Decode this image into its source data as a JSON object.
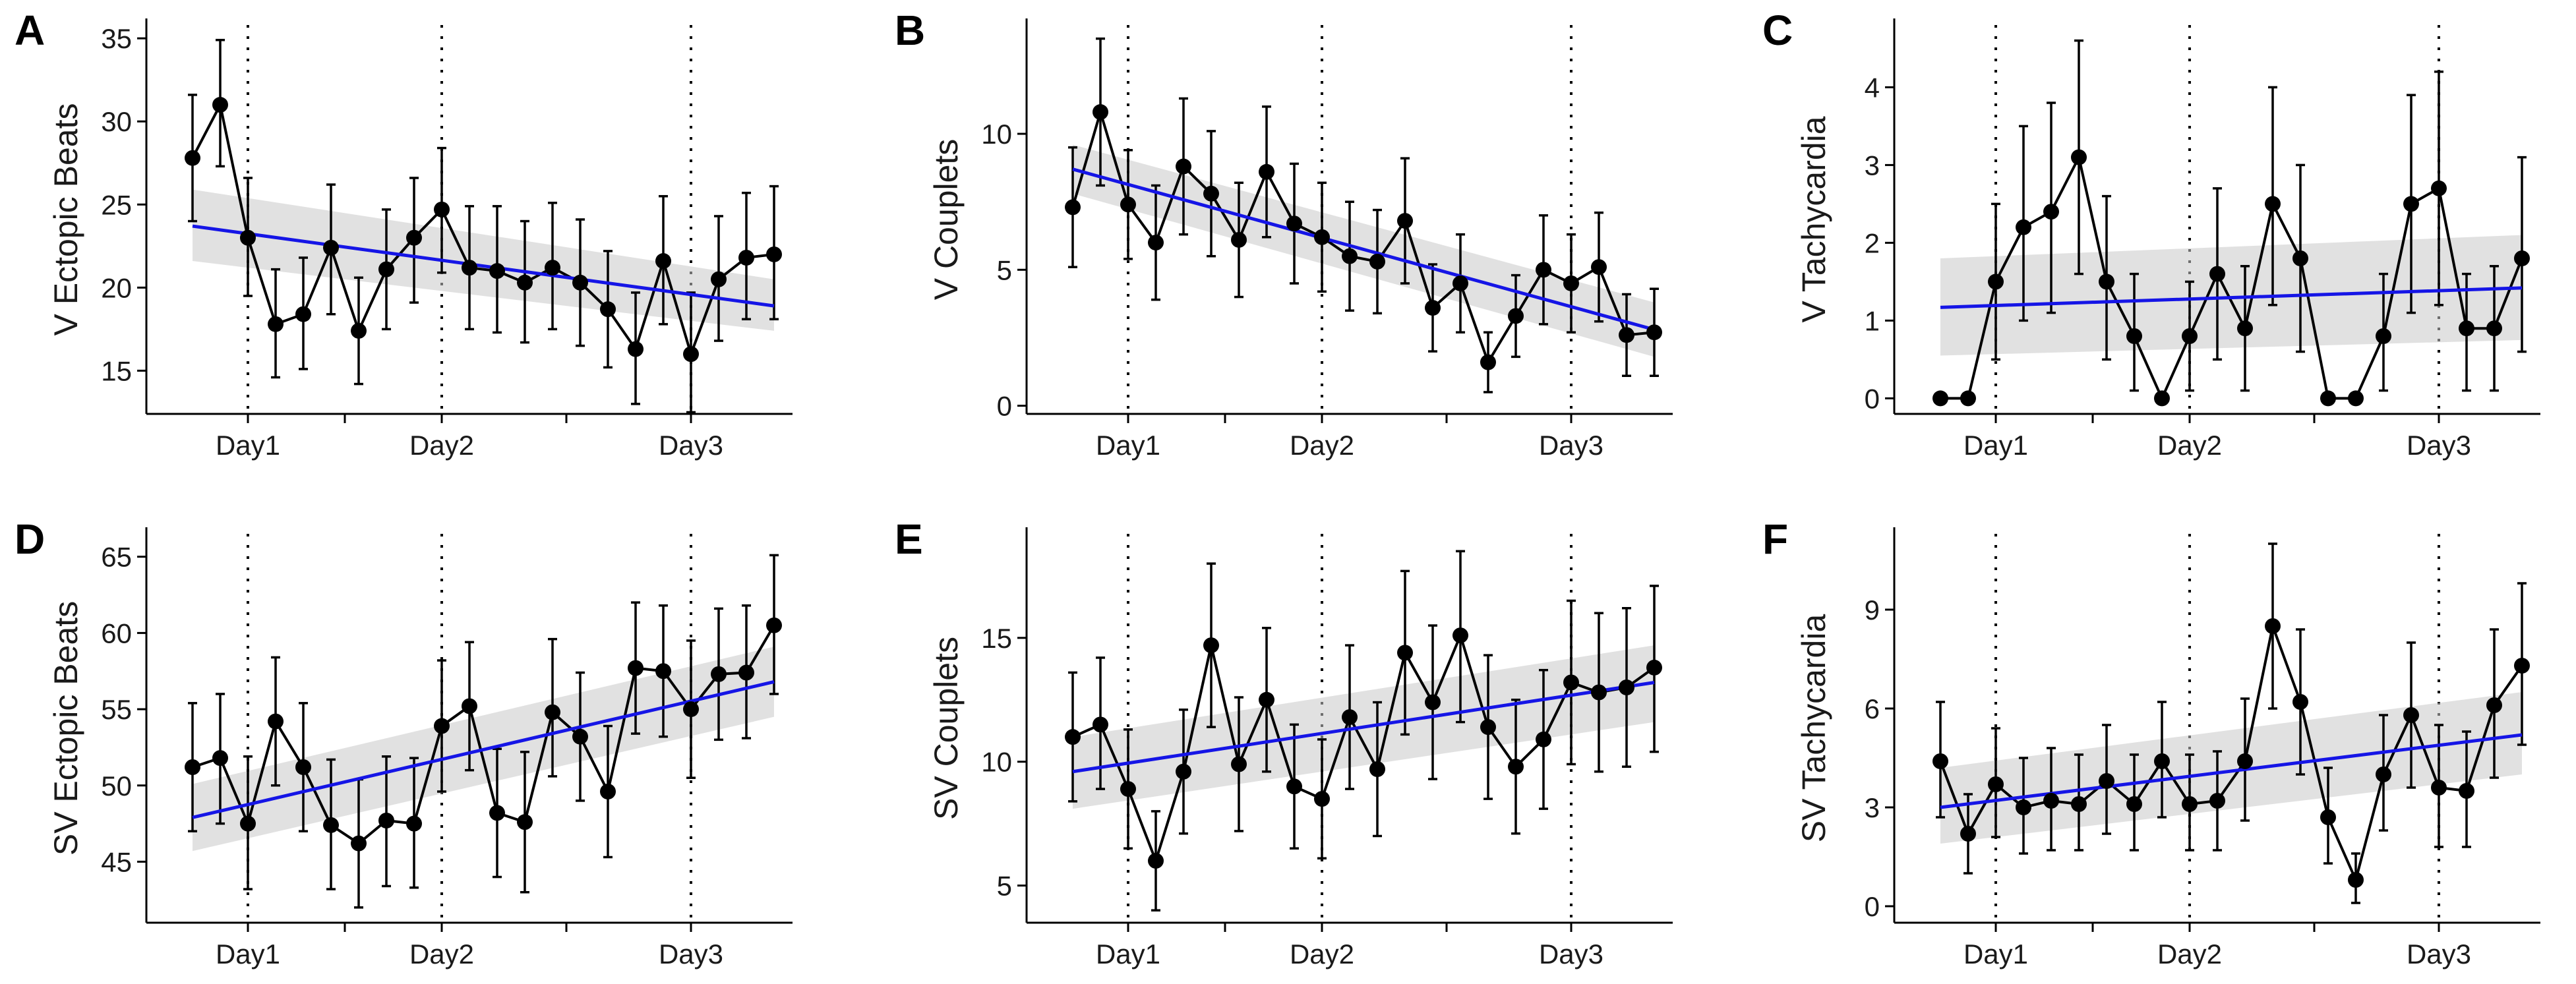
{
  "chart_data": [
    {
      "type": "line",
      "panel": "A",
      "ylabel": "V Ectopic Beats",
      "ylim": [
        12.4,
        35.8
      ],
      "yticks": [
        15,
        20,
        25,
        30,
        35
      ],
      "x_ticks": [
        "Day1",
        "Day2",
        "Day3"
      ],
      "values": [
        27.8,
        31.0,
        23.0,
        17.8,
        18.4,
        22.4,
        17.4,
        21.1,
        23.0,
        24.7,
        21.2,
        21.0,
        20.3,
        21.2,
        20.3,
        18.7,
        16.3,
        21.6,
        16.0,
        20.5,
        21.8,
        22.0
      ],
      "lower": [
        24.0,
        27.3,
        19.5,
        14.6,
        15.1,
        18.4,
        14.2,
        17.5,
        19.1,
        20.9,
        17.5,
        17.3,
        16.7,
        17.5,
        16.5,
        15.2,
        13.0,
        17.8,
        12.5,
        16.8,
        18.1,
        18.1
      ],
      "upper": [
        31.6,
        34.9,
        26.6,
        21.1,
        21.8,
        26.2,
        20.6,
        24.7,
        26.6,
        28.4,
        24.9,
        24.9,
        24.0,
        25.1,
        24.1,
        22.2,
        19.7,
        25.5,
        19.7,
        24.3,
        25.7,
        26.1
      ],
      "trend": {
        "start": 23.7,
        "end": 18.9,
        "band_start": [
          21.6,
          25.9
        ],
        "band_end": [
          17.4,
          20.5
        ]
      }
    },
    {
      "type": "line",
      "panel": "B",
      "ylabel": "V Couplets",
      "ylim": [
        -0.3,
        14.0
      ],
      "yticks": [
        0,
        5,
        10
      ],
      "x_ticks": [
        "Day1",
        "Day2",
        "Day3"
      ],
      "values": [
        7.3,
        10.8,
        7.4,
        6.0,
        8.8,
        7.8,
        6.1,
        8.6,
        6.7,
        6.2,
        5.5,
        5.3,
        6.8,
        3.6,
        4.5,
        1.6,
        3.3,
        5.0,
        4.5,
        5.1,
        2.6,
        2.7
      ],
      "lower": [
        5.1,
        8.1,
        5.4,
        3.9,
        6.3,
        5.5,
        4.0,
        6.2,
        4.5,
        4.2,
        3.5,
        3.4,
        4.5,
        2.0,
        2.7,
        0.5,
        1.8,
        3.0,
        2.7,
        3.1,
        1.1,
        1.1
      ],
      "upper": [
        9.5,
        13.5,
        9.4,
        8.1,
        11.3,
        10.1,
        8.2,
        11.0,
        8.9,
        8.2,
        7.5,
        7.2,
        9.1,
        5.2,
        6.3,
        2.7,
        4.8,
        7.0,
        6.3,
        7.1,
        4.1,
        4.3
      ],
      "trend": {
        "start": 8.7,
        "end": 2.8,
        "band_start": [
          7.8,
          9.6
        ],
        "band_end": [
          1.8,
          3.8
        ]
      }
    },
    {
      "type": "line",
      "panel": "C",
      "ylabel": "V Tachycardia",
      "ylim": [
        -0.2,
        4.8
      ],
      "yticks": [
        0,
        1,
        2,
        3,
        4
      ],
      "x_ticks": [
        "Day1",
        "Day2",
        "Day3"
      ],
      "values": [
        0.0,
        0.0,
        1.5,
        2.2,
        2.4,
        3.1,
        1.5,
        0.8,
        0.0,
        0.8,
        1.6,
        0.9,
        2.5,
        1.8,
        0.0,
        0.0,
        0.8,
        2.5,
        2.7,
        0.9,
        0.9,
        1.8
      ],
      "lower": [
        0.0,
        0.0,
        0.5,
        1.0,
        1.1,
        1.6,
        0.5,
        0.1,
        0.0,
        0.1,
        0.5,
        0.1,
        1.2,
        0.6,
        0.0,
        0.0,
        0.1,
        1.1,
        1.2,
        0.1,
        0.1,
        0.6
      ],
      "upper": [
        0.0,
        0.0,
        2.5,
        3.5,
        3.8,
        4.6,
        2.6,
        1.6,
        0.0,
        1.5,
        2.7,
        1.7,
        4.0,
        3.0,
        0.0,
        0.0,
        1.6,
        3.9,
        4.2,
        1.6,
        1.7,
        3.1
      ],
      "trend": {
        "start": 1.17,
        "end": 1.42,
        "band_start": [
          0.55,
          1.8
        ],
        "band_end": [
          0.75,
          2.1
        ]
      }
    },
    {
      "type": "line",
      "panel": "D",
      "ylabel": "SV Ectopic Beats",
      "ylim": [
        41.0,
        66.5
      ],
      "yticks": [
        45,
        50,
        55,
        60,
        65
      ],
      "x_ticks": [
        "Day1",
        "Day2",
        "Day3"
      ],
      "values": [
        51.2,
        51.8,
        47.5,
        54.2,
        51.2,
        47.4,
        46.2,
        47.7,
        47.5,
        53.9,
        55.2,
        48.2,
        47.6,
        54.8,
        53.2,
        49.6,
        57.7,
        57.5,
        55.0,
        57.3,
        57.4,
        60.5
      ],
      "lower": [
        47.0,
        47.5,
        43.2,
        50.0,
        47.0,
        43.2,
        42.0,
        43.4,
        43.3,
        49.6,
        51.0,
        44.0,
        43.0,
        50.6,
        49.0,
        45.3,
        53.4,
        53.2,
        50.5,
        53.0,
        53.1,
        56.0
      ],
      "upper": [
        55.4,
        56.0,
        51.9,
        58.4,
        55.4,
        51.7,
        50.4,
        51.9,
        51.8,
        58.2,
        59.4,
        52.4,
        52.2,
        59.6,
        57.4,
        53.9,
        62.0,
        61.8,
        59.5,
        61.6,
        61.8,
        65.1
      ],
      "trend": {
        "start": 47.9,
        "end": 56.8,
        "band_start": [
          45.7,
          50.1
        ],
        "band_end": [
          54.5,
          59.1
        ]
      }
    },
    {
      "type": "line",
      "panel": "E",
      "ylabel": "SV Couplets",
      "ylim": [
        3.5,
        19.2
      ],
      "yticks": [
        5,
        10,
        15
      ],
      "x_ticks": [
        "Day1",
        "Day2",
        "Day3"
      ],
      "values": [
        11.0,
        11.5,
        8.9,
        6.0,
        9.6,
        14.7,
        9.9,
        12.5,
        9.0,
        8.5,
        11.8,
        9.7,
        14.4,
        12.4,
        15.1,
        11.4,
        9.8,
        10.9,
        13.2,
        12.8,
        13.0,
        13.8
      ],
      "lower": [
        8.4,
        8.9,
        6.5,
        4.0,
        7.1,
        11.4,
        7.2,
        9.6,
        6.5,
        6.1,
        8.9,
        7.0,
        11.1,
        9.3,
        11.6,
        8.5,
        7.1,
        8.1,
        9.9,
        9.6,
        9.8,
        10.4
      ],
      "upper": [
        13.6,
        14.2,
        11.3,
        8.0,
        12.1,
        18.0,
        12.6,
        15.4,
        11.5,
        10.9,
        14.7,
        12.4,
        17.7,
        15.5,
        18.5,
        14.3,
        12.5,
        13.7,
        16.5,
        16.0,
        16.2,
        17.1
      ],
      "trend": {
        "start": 9.6,
        "end": 13.2,
        "band_start": [
          8.1,
          11.0
        ],
        "band_end": [
          11.6,
          14.7
        ]
      }
    },
    {
      "type": "line",
      "panel": "F",
      "ylabel": "SV Tachycardia",
      "ylim": [
        -0.5,
        11.3
      ],
      "yticks": [
        0,
        3,
        6,
        9
      ],
      "x_ticks": [
        "Day1",
        "Day2",
        "Day3"
      ],
      "values": [
        4.4,
        2.2,
        3.7,
        3.0,
        3.2,
        3.1,
        3.8,
        3.1,
        4.4,
        3.1,
        3.2,
        4.4,
        8.5,
        6.2,
        2.7,
        0.8,
        4.0,
        5.8,
        3.6,
        3.5,
        6.1,
        7.3
      ],
      "lower": [
        2.7,
        1.0,
        2.1,
        1.6,
        1.7,
        1.7,
        2.2,
        1.7,
        2.7,
        1.7,
        1.7,
        2.6,
        6.0,
        4.0,
        1.3,
        0.1,
        2.3,
        3.6,
        1.8,
        1.8,
        3.9,
        4.9
      ],
      "upper": [
        6.2,
        3.4,
        5.4,
        4.5,
        4.8,
        4.6,
        5.5,
        4.6,
        6.2,
        4.6,
        4.7,
        6.3,
        11.0,
        8.4,
        4.2,
        1.6,
        5.8,
        8.0,
        5.5,
        5.3,
        8.4,
        9.8
      ],
      "trend": {
        "start": 3.0,
        "end": 5.2,
        "band_start": [
          1.9,
          4.2
        ],
        "band_end": [
          4.0,
          6.5
        ]
      }
    }
  ]
}
